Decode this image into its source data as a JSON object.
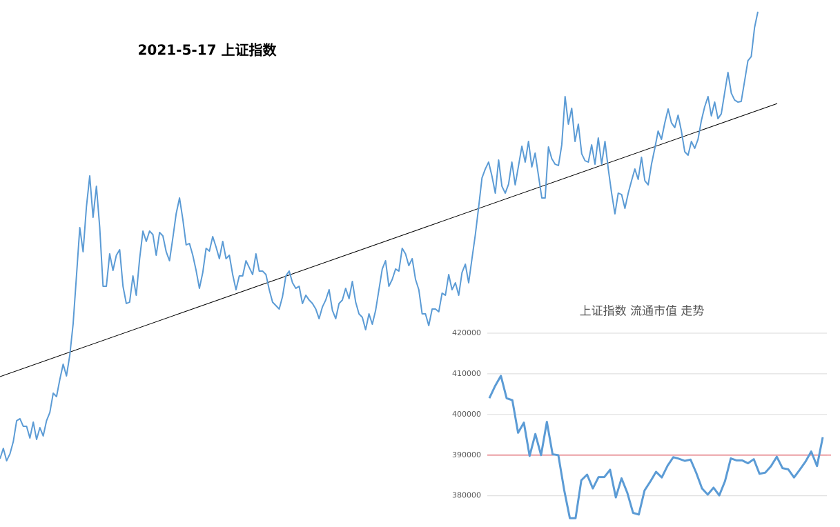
{
  "chart_data": [
    {
      "type": "line",
      "title": "2021-5-17 上证指数",
      "color": "#5b9bd5",
      "values": [
        99,
        114,
        96,
        106,
        124,
        154,
        157,
        146,
        146,
        129,
        152,
        127,
        144,
        132,
        154,
        166,
        194,
        189,
        214,
        236,
        219,
        249,
        294,
        364,
        434,
        399,
        464,
        509,
        449,
        494,
        434,
        349,
        349,
        396,
        372,
        394,
        402,
        349,
        324,
        326,
        364,
        336,
        389,
        429,
        414,
        429,
        424,
        394,
        427,
        422,
        399,
        386,
        419,
        454,
        477,
        446,
        409,
        411,
        394,
        372,
        346,
        369,
        404,
        400,
        421,
        406,
        389,
        414,
        389,
        394,
        366,
        344,
        364,
        364,
        386,
        376,
        366,
        396,
        371,
        371,
        366,
        344,
        326,
        321,
        316,
        334,
        364,
        371,
        354,
        346,
        349,
        324,
        336,
        329,
        324,
        316,
        302,
        319,
        329,
        344,
        314,
        302,
        324,
        329,
        346,
        331,
        356,
        326,
        309,
        304,
        286,
        309,
        294,
        314,
        344,
        374,
        386,
        349,
        359,
        374,
        371,
        404,
        396,
        379,
        389,
        359,
        344,
        309,
        309,
        292,
        316,
        316,
        312,
        339,
        336,
        366,
        344,
        354,
        336,
        369,
        381,
        354,
        389,
        424,
        464,
        506,
        519,
        529,
        509,
        484,
        532,
        494,
        484,
        497,
        529,
        496,
        524,
        552,
        529,
        559,
        522,
        542,
        509,
        477,
        477,
        551,
        534,
        526,
        524,
        554,
        624,
        584,
        607,
        559,
        584,
        541,
        531,
        529,
        554,
        526,
        564,
        526,
        559,
        519,
        484,
        454,
        484,
        482,
        462,
        484,
        502,
        519,
        504,
        536,
        502,
        496,
        526,
        549,
        574,
        562,
        586,
        606,
        586,
        579,
        597,
        574,
        544,
        539,
        559,
        549,
        562,
        589,
        609,
        624,
        596,
        616,
        592,
        599,
        629,
        659,
        629,
        619,
        616,
        617,
        646,
        676,
        682,
        724,
        747
      ],
      "ylim": [
        0,
        764
      ],
      "trend_line": {
        "values": [
          218,
          604
        ],
        "color": "#000000"
      }
    },
    {
      "type": "line",
      "title": "上证指数 流通市值 走势",
      "color": "#5b9bd5",
      "values": [
        404000,
        407000,
        409500,
        404000,
        403500,
        395500,
        398000,
        389800,
        395200,
        390000,
        398200,
        390200,
        390000,
        381500,
        374500,
        374500,
        383800,
        385200,
        381800,
        384600,
        384600,
        386400,
        379600,
        384300,
        380700,
        375800,
        375400,
        381300,
        383500,
        385900,
        384500,
        387400,
        389500,
        389100,
        388600,
        388900,
        385600,
        381800,
        380300,
        382000,
        380100,
        383600,
        389200,
        388700,
        388700,
        388000,
        389000,
        385400,
        385700,
        387300,
        389600,
        386800,
        386500,
        384500,
        386400,
        388400,
        390900,
        387300,
        394400
      ],
      "ylim": [
        373000,
        420000
      ],
      "yticks": [
        380000,
        390000,
        400000,
        410000,
        420000
      ],
      "grid": true,
      "reference_line": {
        "value": 390000,
        "color": "#e0505a"
      }
    }
  ]
}
